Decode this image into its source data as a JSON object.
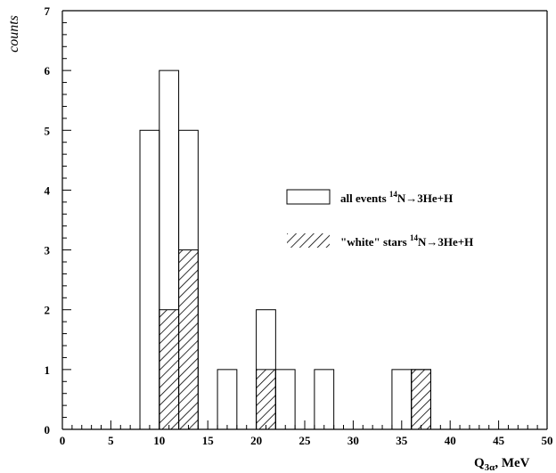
{
  "chart_data": {
    "type": "bar",
    "xlabel": "Q",
    "xlabel_sub": "3α",
    "xlabel_suffix": ", MeV",
    "ylabel": "counts",
    "xlim": [
      0,
      50
    ],
    "ylim": [
      0,
      7
    ],
    "xticks": [
      0,
      5,
      10,
      15,
      20,
      25,
      30,
      35,
      40,
      45,
      50
    ],
    "yticks": [
      0,
      1,
      2,
      3,
      4,
      5,
      6,
      7
    ],
    "bin_width": 2,
    "grid": false,
    "legend_position": "right",
    "series": [
      {
        "legend_prefix": "all events ",
        "legend_sup": "14",
        "legend_suffix": "N→3He+H",
        "style": "open",
        "bins": [
          {
            "x": 8,
            "value": 5
          },
          {
            "x": 10,
            "value": 6
          },
          {
            "x": 12,
            "value": 5
          },
          {
            "x": 16,
            "value": 1
          },
          {
            "x": 20,
            "value": 2
          },
          {
            "x": 22,
            "value": 1
          },
          {
            "x": 26,
            "value": 1
          },
          {
            "x": 34,
            "value": 1
          },
          {
            "x": 36,
            "value": 1
          }
        ]
      },
      {
        "legend_prefix": "\"white\" stars ",
        "legend_sup": "14",
        "legend_suffix": "N→3He+H",
        "style": "hatched",
        "bins": [
          {
            "x": 10,
            "value": 2
          },
          {
            "x": 12,
            "value": 3
          },
          {
            "x": 20,
            "value": 1
          },
          {
            "x": 36,
            "value": 1
          }
        ]
      }
    ]
  }
}
